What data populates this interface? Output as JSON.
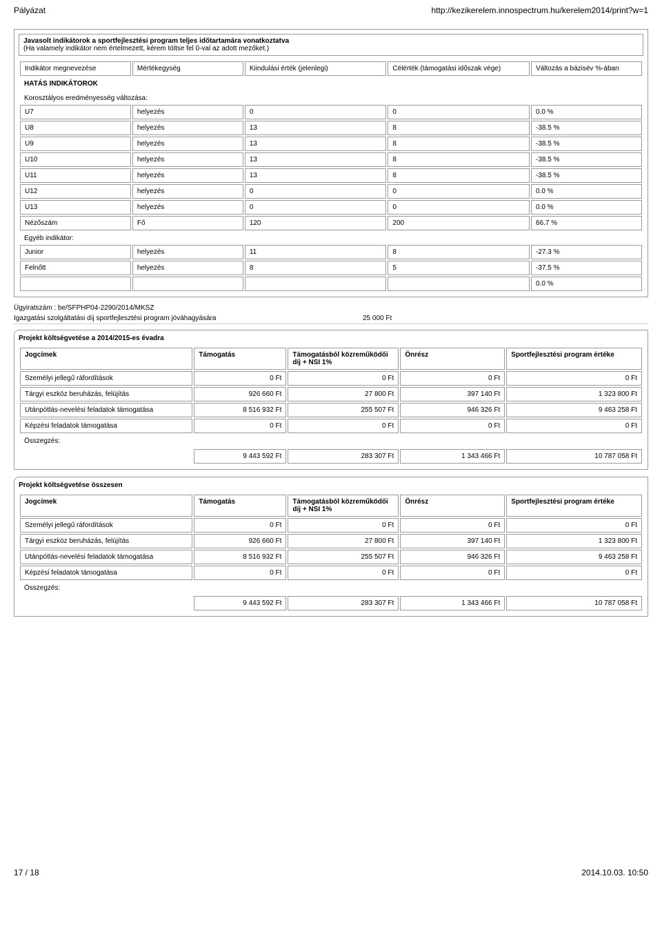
{
  "header": {
    "left": "Pályázat",
    "right": "http://kezikerelem.innospectrum.hu/kerelem2014/print?w=1"
  },
  "indicator_section": {
    "title": "Javasolt indikátorok a sportfejlesztési program teljes időtartamára vonatkoztatva",
    "subtitle": "(Ha valamely indikátor nem értelmezett, kérem töltse fel 0-val az adott mezőket.)",
    "columns": [
      "Indikátor megnevezése",
      "Mértékegység",
      "Kiindulási érték (jelenlegi)",
      "Célérték (támogatási időszak vége)",
      "Változás a bázisév %-ában"
    ],
    "group_heading": "HATÁS INDIKÁTOROK",
    "cat1": "Korosztályos eredményesség változása:",
    "rows1": [
      {
        "name": "U7",
        "unit": "helyezés",
        "start": "0",
        "target": "0",
        "pct": "0.0  %"
      },
      {
        "name": "U8",
        "unit": "helyezés",
        "start": "13",
        "target": "8",
        "pct": "-38.5  %"
      },
      {
        "name": "U9",
        "unit": "helyezés",
        "start": "13",
        "target": "8",
        "pct": "-38.5  %"
      },
      {
        "name": "U10",
        "unit": "helyezés",
        "start": "13",
        "target": "8",
        "pct": "-38.5  %"
      },
      {
        "name": "U11",
        "unit": "helyezés",
        "start": "13",
        "target": "8",
        "pct": "-38.5  %"
      },
      {
        "name": "U12",
        "unit": "helyezés",
        "start": "0",
        "target": "0",
        "pct": "0.0  %"
      },
      {
        "name": "U13",
        "unit": "helyezés",
        "start": "0",
        "target": "0",
        "pct": "0.0  %"
      },
      {
        "name": "Nézőszám",
        "unit": "Fő",
        "start": "120",
        "target": "200",
        "pct": "66.7  %"
      }
    ],
    "cat2": "Egyéb indikátor:",
    "rows2": [
      {
        "name": "Junior",
        "unit": "helyezés",
        "start": "11",
        "target": "8",
        "pct": "-27.3  %"
      },
      {
        "name": "Felnőtt",
        "unit": "helyezés",
        "start": "8",
        "target": "5",
        "pct": "-37.5  %"
      },
      {
        "name": "",
        "unit": "",
        "start": "",
        "target": "",
        "pct": "0.0  %"
      }
    ]
  },
  "meta": {
    "ugyirat": "Ügyiratszám : be/SFPHP04-2290/2014/MKSZ",
    "igazgatasi_label": "Igazgatási szolgáltatási díj sportfejlesztési program jóváhagyására",
    "igazgatasi_value": "25 000 Ft"
  },
  "budget_year": {
    "title": "Projekt költségvetése a 2014/2015-es évadra",
    "columns": [
      "Jogcímek",
      "Támogatás",
      "Támogatásból közreműködői díj + NSI 1%",
      "Önrész",
      "Sportfejlesztési program értéke"
    ],
    "rows": [
      {
        "label": "Személyi jellegű ráfordítások",
        "a": "0 Ft",
        "b": "0 Ft",
        "c": "0 Ft",
        "d": "0 Ft"
      },
      {
        "label": "Tárgyi eszköz beruházás, felújítás",
        "a": "926 660 Ft",
        "b": "27 800 Ft",
        "c": "397 140 Ft",
        "d": "1 323 800 Ft"
      },
      {
        "label": "Utánpótlás-nevelési feladatok támogatása",
        "a": "8 516 932 Ft",
        "b": "255 507 Ft",
        "c": "946 326 Ft",
        "d": "9 463 258 Ft"
      },
      {
        "label": "Képzési feladatok támogatása",
        "a": "0 Ft",
        "b": "0 Ft",
        "c": "0 Ft",
        "d": "0 Ft"
      }
    ],
    "sum_label": "Összegzés:",
    "sum": {
      "a": "9 443 592 Ft",
      "b": "283 307 Ft",
      "c": "1 343 466 Ft",
      "d": "10 787 058 Ft"
    }
  },
  "budget_total": {
    "title": "Projekt költségvetése összesen",
    "columns": [
      "Jogcímek",
      "Támogatás",
      "Támogatásból közreműködői díj + NSI 1%",
      "Önrész",
      "Sportfejlesztési program értéke"
    ],
    "rows": [
      {
        "label": "Személyi jellegű ráfordítások",
        "a": "0 Ft",
        "b": "0 Ft",
        "c": "0 Ft",
        "d": "0 Ft"
      },
      {
        "label": "Tárgyi eszköz beruházás, felújítás",
        "a": "926 660 Ft",
        "b": "27 800 Ft",
        "c": "397 140 Ft",
        "d": "1 323 800 Ft"
      },
      {
        "label": "Utánpótlás-nevelési feladatok támogatása",
        "a": "8 516 932 Ft",
        "b": "255 507 Ft",
        "c": "946 326 Ft",
        "d": "9 463 258 Ft"
      },
      {
        "label": "Képzési feladatok támogatása",
        "a": "0 Ft",
        "b": "0 Ft",
        "c": "0 Ft",
        "d": "0 Ft"
      }
    ],
    "sum_label": "Összegzés:",
    "sum": {
      "a": "9 443 592 Ft",
      "b": "283 307 Ft",
      "c": "1 343 466 Ft",
      "d": "10 787 058 Ft"
    }
  },
  "footer": {
    "left": "17 / 18",
    "right": "2014.10.03. 10:50"
  }
}
